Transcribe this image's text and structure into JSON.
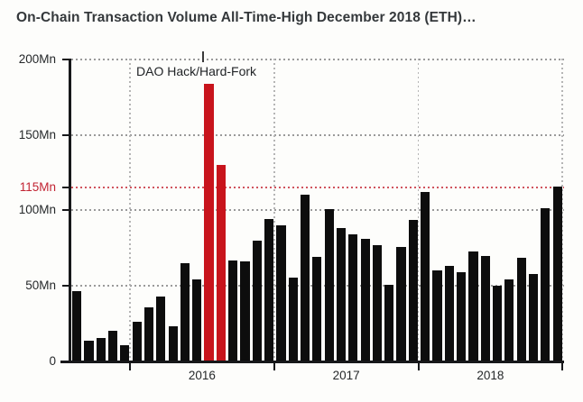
{
  "title": "On-Chain Transaction Volume All-Time-High December 2018 (ETH)…",
  "colors": {
    "background": "#fdfdfb",
    "bar": "#0d0d0d",
    "highlight_bar": "#c8141c",
    "grid": "#9a9a9a",
    "reference_line": "#d0545e",
    "axis": "#17181a",
    "label": "#25282a",
    "reference_label": "#c22433",
    "title": "#34383b"
  },
  "chart_data": {
    "type": "bar",
    "title": "On-Chain Transaction Volume All-Time-High December 2018 (ETH)…",
    "unit": "Mn",
    "ylim": [
      0,
      200
    ],
    "grid": "dotted",
    "months": [
      "Aug 2015",
      "Sep 2015",
      "Oct 2015",
      "Nov 2015",
      "Dec 2015",
      "Jan 2016",
      "Feb 2016",
      "Mar 2016",
      "Apr 2016",
      "May 2016",
      "Jun 2016",
      "Jul 2016",
      "Aug 2016",
      "Sep 2016",
      "Oct 2016",
      "Nov 2016",
      "Dec 2016",
      "Jan 2017",
      "Feb 2017",
      "Mar 2017",
      "Apr 2017",
      "May 2017",
      "Jun 2017",
      "Jul 2017",
      "Aug 2017",
      "Sep 2017",
      "Oct 2017",
      "Nov 2017",
      "Dec 2017",
      "Jan 2018",
      "Feb 2018",
      "Mar 2018",
      "Apr 2018",
      "May 2018",
      "Jun 2018",
      "Jul 2018",
      "Aug 2018",
      "Sep 2018",
      "Oct 2018",
      "Nov 2018",
      "Dec 2018"
    ],
    "values": [
      46.5,
      14,
      15.5,
      20,
      10.5,
      26.5,
      36,
      43,
      23.5,
      65,
      54.5,
      184,
      130,
      67,
      66,
      80,
      94,
      90,
      55.5,
      110.5,
      69,
      101,
      88,
      84,
      81,
      77,
      50.5,
      76,
      93.5,
      112,
      60.5,
      63.5,
      59,
      72.5,
      70,
      50,
      54,
      68.5,
      58,
      101.5,
      115.5
    ],
    "highlight_indices": [
      11,
      12
    ],
    "highlight_months": [
      "Jul 2016",
      "Aug 2016"
    ],
    "annotation": {
      "label": "DAO Hack/Hard-Fork"
    },
    "reference_line": {
      "label": "115Mn",
      "value": 115
    },
    "y_axis": {
      "ticks": [
        {
          "label": "0",
          "value": 0
        },
        {
          "label": "50Mn",
          "value": 50
        },
        {
          "label": "100Mn",
          "value": 100
        },
        {
          "label": "115Mn",
          "value": 115,
          "highlight": true
        },
        {
          "label": "150Mn",
          "value": 150
        },
        {
          "label": "200Mn",
          "value": 200
        }
      ]
    },
    "x_axis": {
      "year_labels": [
        "2016",
        "2017",
        "2018"
      ]
    }
  }
}
